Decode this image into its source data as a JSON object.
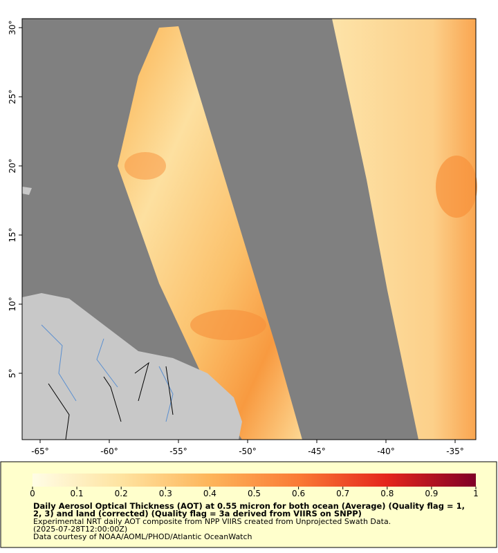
{
  "map": {
    "type": "map",
    "xlim": [
      -66.3,
      -33.5
    ],
    "ylim": [
      0.2,
      30.65
    ],
    "xticks": [
      {
        "value": -65,
        "label": "-65°"
      },
      {
        "value": -60,
        "label": "-60°"
      },
      {
        "value": -55,
        "label": "-55°"
      },
      {
        "value": -50,
        "label": "-50°"
      },
      {
        "value": -45,
        "label": "-45°"
      },
      {
        "value": -40,
        "label": "-40°"
      },
      {
        "value": -35,
        "label": "-35°"
      }
    ],
    "yticks": [
      {
        "value": 5,
        "label": "5°"
      },
      {
        "value": 10,
        "label": "10°"
      },
      {
        "value": 15,
        "label": "15°"
      },
      {
        "value": 20,
        "label": "20°"
      },
      {
        "value": 25,
        "label": "25°"
      },
      {
        "value": 30,
        "label": "30°"
      }
    ]
  },
  "colorbar": {
    "range": [
      0,
      1
    ],
    "ticks": [
      0,
      0.1,
      0.2,
      0.3,
      0.4,
      0.5,
      0.6,
      0.7,
      0.8,
      0.9,
      1
    ]
  },
  "caption": {
    "title_lines": [
      "Daily Aerosol Optical Thickness (AOT) at 0.55 micron for both ocean (Average) (Quality flag = 1,",
      "2, 3) and land (corrected) (Quality flag = 3a derived from VIIRS on SNPP)"
    ],
    "lines": [
      "Experimental NRT daily AOT composite from NPP VIIRS created from Unprojected Swath Data.",
      "(2025-07-28T12:00:00Z)",
      "Data courtesy of NOAA/AOML/PHOD/Atlantic OceanWatch"
    ]
  }
}
